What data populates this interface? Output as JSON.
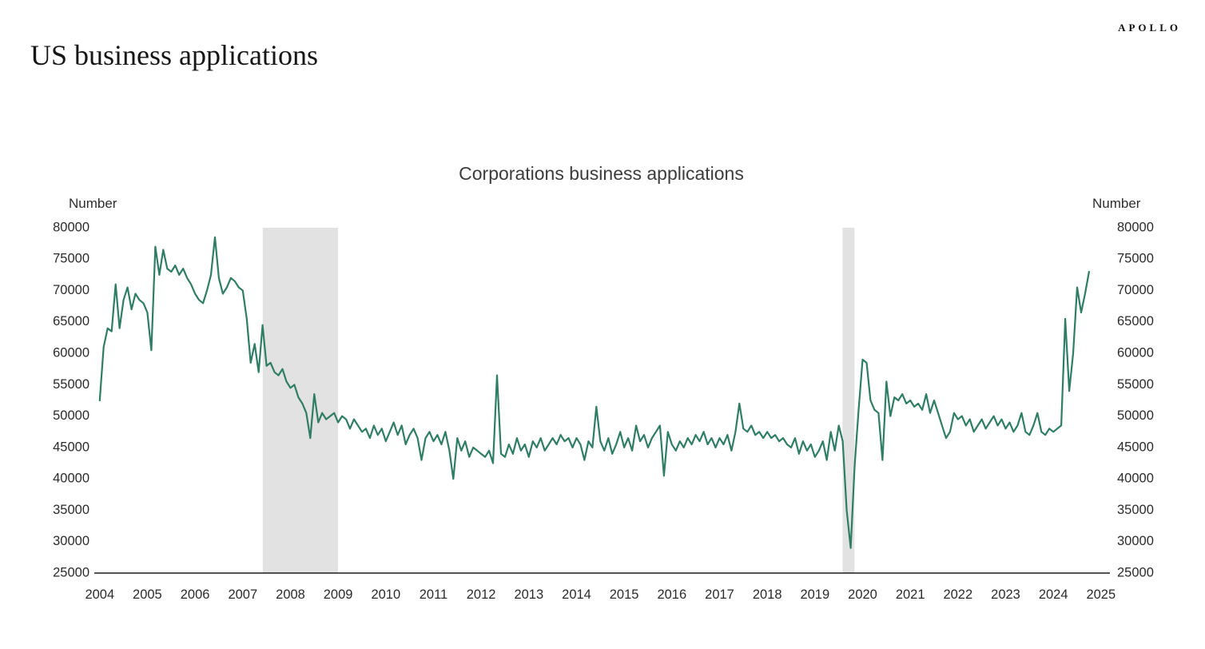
{
  "header": {
    "logo": "APOLLO",
    "title": "US business applications"
  },
  "chart_data": {
    "type": "line",
    "title": "Corporations business applications",
    "ylabel_left": "Number",
    "ylabel_right": "Number",
    "ylim": [
      25000,
      80000
    ],
    "y_ticks": [
      25000,
      30000,
      35000,
      40000,
      45000,
      50000,
      55000,
      60000,
      65000,
      70000,
      75000,
      80000
    ],
    "x_ticks": [
      2004,
      2005,
      2006,
      2007,
      2008,
      2009,
      2010,
      2011,
      2012,
      2013,
      2014,
      2015,
      2016,
      2017,
      2018,
      2019,
      2020,
      2021,
      2022,
      2023,
      2024,
      2025
    ],
    "x_domain": [
      2004.42,
      2025.62
    ],
    "x_tick_offset": 0.5,
    "grid": false,
    "legend": false,
    "line_color": "#2E7D64",
    "recession_band_color": "#E2E2E2",
    "recession_bands": [
      {
        "start": 2007.92,
        "end": 2009.5
      },
      {
        "start": 2020.08,
        "end": 2020.33
      }
    ],
    "series": [
      {
        "name": "Corporations business applications",
        "frequency": "monthly",
        "start_year": 2004,
        "start_month": 7,
        "values": [
          52500,
          61000,
          64000,
          63500,
          71000,
          64000,
          68500,
          70500,
          67000,
          69500,
          68500,
          68000,
          66500,
          60500,
          77000,
          72500,
          76500,
          73500,
          73000,
          74000,
          72500,
          73500,
          72000,
          71000,
          69500,
          68500,
          68000,
          70000,
          72500,
          78500,
          72000,
          69500,
          70500,
          72000,
          71500,
          70500,
          70000,
          65500,
          58500,
          61500,
          57000,
          64500,
          58000,
          58500,
          57000,
          56500,
          57500,
          55500,
          54500,
          55000,
          53000,
          52000,
          50500,
          46500,
          53500,
          49000,
          50500,
          49500,
          50000,
          50500,
          49000,
          50000,
          49500,
          48000,
          49500,
          48500,
          47500,
          48000,
          46500,
          48500,
          47000,
          48000,
          46000,
          47500,
          49000,
          47000,
          48500,
          45500,
          47000,
          48000,
          46500,
          43000,
          46500,
          47500,
          46000,
          47000,
          45500,
          47500,
          44500,
          40000,
          46500,
          44500,
          46000,
          43500,
          45000,
          44500,
          44000,
          43500,
          44500,
          42500,
          56500,
          44000,
          43500,
          45500,
          44000,
          46500,
          44500,
          45500,
          43500,
          46000,
          45000,
          46500,
          44500,
          45500,
          46500,
          45500,
          47000,
          46000,
          46500,
          45000,
          46500,
          45500,
          43000,
          46000,
          45000,
          51500,
          46000,
          44500,
          46500,
          44000,
          45500,
          47500,
          45000,
          46500,
          44500,
          48500,
          46000,
          47000,
          45000,
          46500,
          47500,
          48500,
          40500,
          47500,
          45500,
          44500,
          46000,
          45000,
          46500,
          45500,
          47000,
          46000,
          47500,
          45500,
          46500,
          45000,
          46500,
          45500,
          47000,
          44500,
          47500,
          52000,
          48000,
          47500,
          48500,
          47000,
          47500,
          46500,
          47500,
          46500,
          47000,
          46000,
          46500,
          45500,
          45000,
          46500,
          44000,
          46000,
          44500,
          45500,
          43500,
          44500,
          46000,
          43000,
          47500,
          44500,
          48500,
          46000,
          35000,
          29000,
          42000,
          51000,
          59000,
          58500,
          52500,
          51000,
          50500,
          43000,
          55500,
          50000,
          53000,
          52500,
          53500,
          52000,
          52500,
          51500,
          52000,
          51000,
          53500,
          50500,
          52500,
          50500,
          48500,
          46500,
          47500,
          50500,
          49500,
          50000,
          48500,
          49500,
          47500,
          48500,
          49500,
          48000,
          49000,
          50000,
          48500,
          49500,
          48000,
          49000,
          47500,
          48500,
          50500,
          47500,
          47000,
          48500,
          50500,
          47500,
          47000,
          48000,
          47500,
          48000,
          48500,
          65500,
          54000,
          60000,
          70500,
          66500,
          69500,
          73000
        ]
      }
    ]
  }
}
